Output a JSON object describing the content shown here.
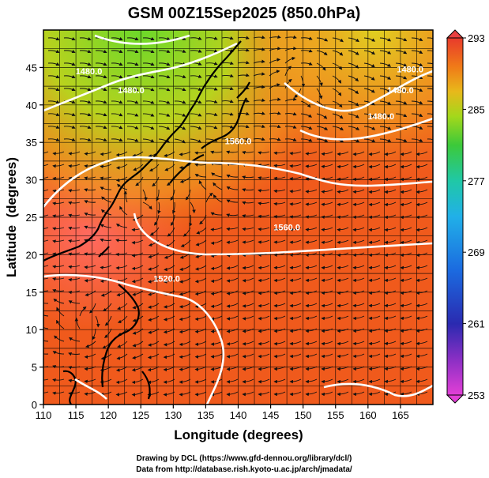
{
  "title": "GSM 00Z15Sep2025 (850.0hPa)",
  "x_axis": {
    "label": "Longitude (degrees)",
    "min": 110,
    "max": 170,
    "ticks": [
      "110",
      "115",
      "120",
      "125",
      "130",
      "135",
      "140",
      "145",
      "150",
      "155",
      "160",
      "165"
    ],
    "tick_values": [
      110,
      115,
      120,
      125,
      130,
      135,
      140,
      145,
      150,
      155,
      160,
      165
    ]
  },
  "y_axis": {
    "label": "Latitude  (degrees)",
    "min": 0,
    "max": 50,
    "ticks": [
      "0",
      "5",
      "10",
      "15",
      "20",
      "25",
      "30",
      "35",
      "40",
      "45"
    ],
    "tick_values": [
      0,
      5,
      10,
      15,
      20,
      25,
      30,
      35,
      40,
      45
    ]
  },
  "colorbar": {
    "min": 253,
    "max": 293,
    "labels": [
      "293",
      "285",
      "277",
      "269",
      "261",
      "253"
    ],
    "label_values": [
      293,
      285,
      277,
      269,
      261,
      253
    ]
  },
  "contour_labels": [
    {
      "text": "1560.0",
      "lon": 140.0,
      "lat": 35.2
    },
    {
      "text": "1560.0",
      "lon": 147.5,
      "lat": 23.7
    },
    {
      "text": "1520.0",
      "lon": 129.0,
      "lat": 16.8
    },
    {
      "text": "1480.0",
      "lon": 123.5,
      "lat": 42.0
    },
    {
      "text": "1480.0",
      "lon": 117.0,
      "lat": 44.5
    },
    {
      "text": "1480.0",
      "lon": 165.0,
      "lat": 42.0
    },
    {
      "text": "1480.0",
      "lon": 162.0,
      "lat": 38.5
    },
    {
      "text": "1480.0",
      "lon": 166.5,
      "lat": 44.8
    }
  ],
  "footer": {
    "line1": "Drawing by DCL (https://www.gfd-dennou.org/library/dcl/)",
    "line2": "Data from http://database.rish.kyoto-u.ac.jp/arch/jmadata/"
  }
}
